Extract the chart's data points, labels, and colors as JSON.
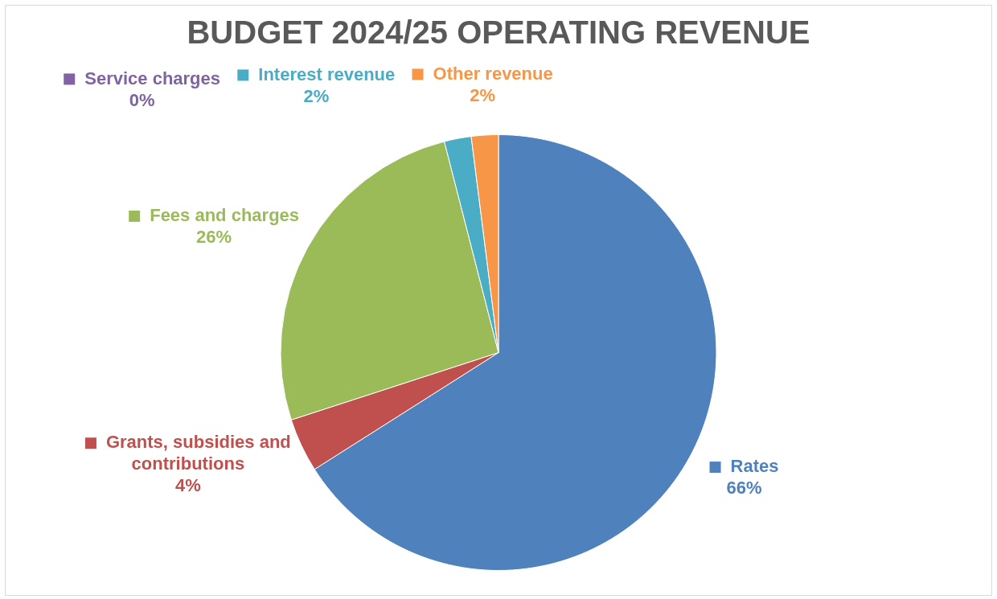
{
  "chart_data": {
    "type": "pie",
    "title": "BUDGET 2024/25 OPERATING REVENUE",
    "categories": [
      "Rates",
      "Grants, subsidies and contributions",
      "Fees and charges",
      "Service charges",
      "Interest revenue",
      "Other revenue"
    ],
    "values": [
      66,
      4,
      26,
      0,
      2,
      2
    ],
    "value_labels": [
      "66%",
      "4%",
      "26%",
      "0%",
      "2%",
      "2%"
    ],
    "colors": [
      "#4f81bd",
      "#c0504d",
      "#9bbb59",
      "#8064a2",
      "#4bacc6",
      "#f79646"
    ],
    "legend": true
  }
}
